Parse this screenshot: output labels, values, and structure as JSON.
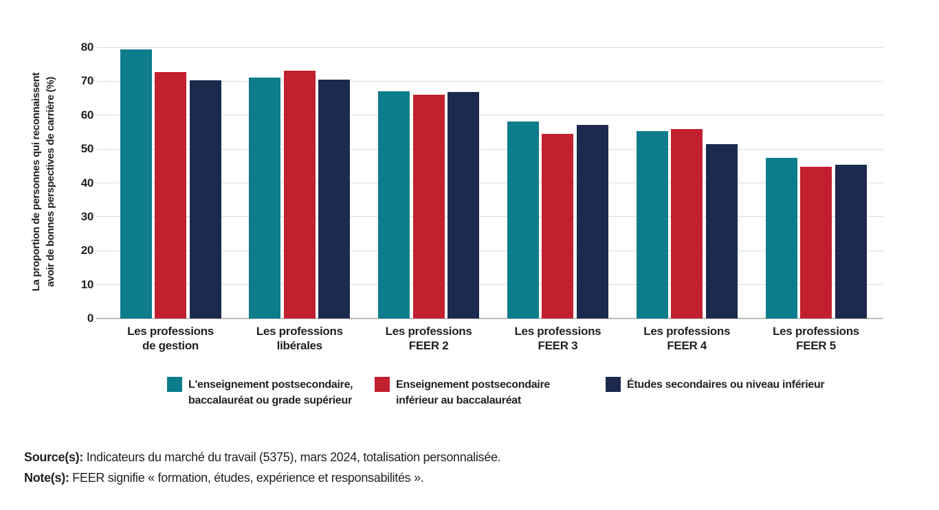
{
  "chart_data": {
    "type": "bar",
    "title": "",
    "ylabel_lines": [
      "La proportion de personnes qui reconnaissent",
      "avoir de bonnes perspectives de carrière (%)"
    ],
    "ylim": [
      0,
      80
    ],
    "yticks": [
      0,
      10,
      20,
      30,
      40,
      50,
      60,
      70,
      80
    ],
    "grid": true,
    "legend_position": "bottom",
    "categories": [
      [
        "Les professions",
        "de gestion"
      ],
      [
        "Les professions",
        "libérales"
      ],
      [
        "Les professions",
        "FEER 2"
      ],
      [
        "Les professions",
        "FEER 3"
      ],
      [
        "Les professions",
        "FEER 4"
      ],
      [
        "Les professions",
        "FEER 5"
      ]
    ],
    "series": [
      {
        "name": "L'enseignement postsecondaire, baccalauréat ou grade supérieur",
        "legend_lines": [
          "L'enseignement postsecondaire,",
          "baccalauréat ou grade supérieur"
        ],
        "color": "#0d7c8c",
        "values": [
          79.4,
          71.1,
          67.1,
          58.1,
          55.3,
          47.3
        ]
      },
      {
        "name": "Enseignement postsecondaire inférieur au baccalauréat",
        "legend_lines": [
          "Enseignement postsecondaire",
          "inférieur au baccalauréat"
        ],
        "color": "#c2202f",
        "values": [
          72.7,
          73.1,
          66.0,
          54.4,
          56.0,
          44.8
        ]
      },
      {
        "name": "Études secondaires ou niveau inférieur",
        "legend_lines": [
          "Études secondaires ou niveau inférieur"
        ],
        "color": "#1b2a4d",
        "values": [
          70.3,
          70.4,
          66.8,
          57.2,
          51.4,
          45.4
        ]
      }
    ]
  },
  "footer": {
    "source_label": "Source(s):",
    "source_text": " Indicateurs du marché du travail (5375), mars 2024, totalisation personnalisée.",
    "note_label": "Note(s):",
    "note_text": " FEER signifie « formation, études, expérience et responsabilités »."
  },
  "colors": {
    "gridline": "#dadada",
    "axis_line": "#bdbdbd",
    "text": "#231f20"
  }
}
